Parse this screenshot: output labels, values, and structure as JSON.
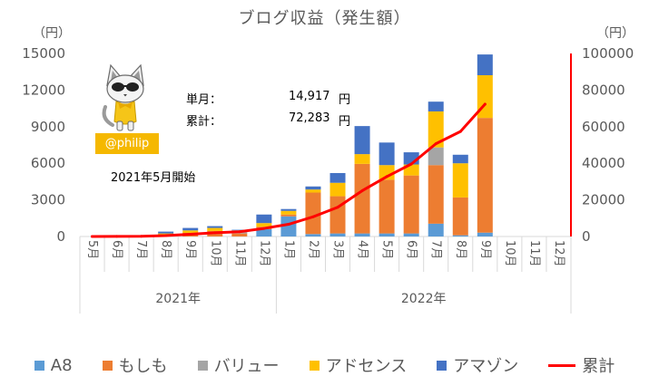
{
  "chart_data": {
    "type": "bar",
    "stacked": true,
    "title": "ブログ収益（発生額）",
    "ylabel": "（円）",
    "y2label": "（円）",
    "ylim": [
      0,
      15000
    ],
    "y_ticks": [
      0,
      3000,
      6000,
      9000,
      12000,
      15000
    ],
    "y2lim": [
      0,
      100000
    ],
    "y2_ticks": [
      0,
      20000,
      40000,
      60000,
      80000,
      100000
    ],
    "grid": false,
    "legend_position": "bottom",
    "category_groups": [
      {
        "label": "2021年",
        "months": [
          "5月",
          "6月",
          "7月",
          "8月",
          "9月",
          "10月",
          "11月",
          "12月"
        ]
      },
      {
        "label": "2022年",
        "months": [
          "1月",
          "2月",
          "3月",
          "4月",
          "5月",
          "6月",
          "7月",
          "8月",
          "9月",
          "10月",
          "11月",
          "12月"
        ]
      }
    ],
    "series": [
      {
        "name": "A8",
        "type": "bar",
        "axis": "left",
        "color": "#5B9BD5",
        "values": [
          0,
          0,
          0,
          0,
          0,
          0,
          0,
          600,
          1650,
          200,
          250,
          250,
          250,
          250,
          1050,
          100,
          317,
          null,
          null,
          null
        ]
      },
      {
        "name": "もしも",
        "type": "bar",
        "axis": "left",
        "color": "#ED7D31",
        "values": [
          0,
          0,
          0,
          150,
          300,
          450,
          250,
          200,
          150,
          3400,
          3050,
          5700,
          4400,
          4750,
          4800,
          3100,
          9400,
          null,
          null,
          null
        ]
      },
      {
        "name": "バリュー",
        "type": "bar",
        "axis": "left",
        "color": "#A5A5A5",
        "values": [
          0,
          0,
          0,
          0,
          0,
          0,
          150,
          0,
          0,
          0,
          0,
          0,
          0,
          0,
          1450,
          0,
          0,
          null,
          null,
          null
        ]
      },
      {
        "name": "アドセンス",
        "type": "bar",
        "axis": "left",
        "color": "#FFC000",
        "values": [
          0,
          30,
          40,
          100,
          200,
          250,
          100,
          300,
          300,
          250,
          1100,
          800,
          1200,
          900,
          2950,
          2800,
          3500,
          null,
          null,
          null
        ]
      },
      {
        "name": "アマゾン",
        "type": "bar",
        "axis": "left",
        "color": "#4472C4",
        "values": [
          0,
          16,
          30,
          150,
          200,
          150,
          50,
          700,
          150,
          250,
          800,
          2300,
          1850,
          1000,
          800,
          700,
          1700,
          null,
          null,
          null
        ]
      },
      {
        "name": "累計",
        "type": "line",
        "axis": "right",
        "color": "#FF0000",
        "values": [
          0,
          46,
          116,
          516,
          1216,
          2066,
          2616,
          4416,
          6666,
          10766,
          15966,
          25016,
          32716,
          39616,
          50666,
          57366,
          72283,
          null,
          null,
          null
        ]
      }
    ]
  },
  "annotations": {
    "mascot_icon": "cat-mascot-icon",
    "badge": {
      "text": "@philip",
      "color": "#F5B800"
    },
    "monthly": {
      "label": "単月：",
      "value": "14,917",
      "unit": "円"
    },
    "total": {
      "label": "累計：",
      "value": "72,283",
      "unit": "円"
    },
    "start_note": "2021年5月開始"
  }
}
